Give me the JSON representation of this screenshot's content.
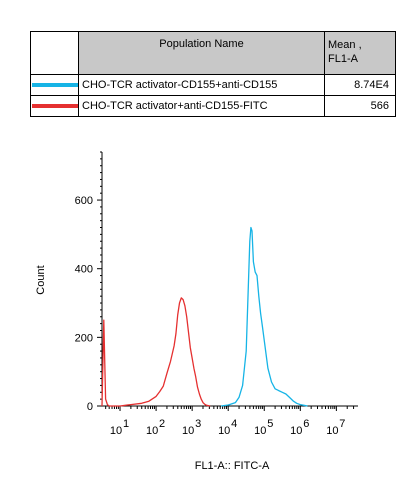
{
  "table": {
    "header_population": "Population Name",
    "header_mean_line1": "Mean ,",
    "header_mean_line2": "FL1-A",
    "rows": [
      {
        "name": "CHO-TCR activator-CD155+anti-CD155",
        "mean": "8.74E4",
        "color": "#16b4e6"
      },
      {
        "name": "CHO-TCR activator+anti-CD155-FITC",
        "mean": "566",
        "color": "#e53030"
      }
    ]
  },
  "chart_data": {
    "type": "line",
    "xlabel": "FL1-A:: FITC-A",
    "ylabel": "Count",
    "xscale": "log",
    "xlim": [
      0.5,
      7.6
    ],
    "ylim": [
      0,
      740
    ],
    "y_ticks": [
      0,
      200,
      400,
      600
    ],
    "x_ticks": [
      1,
      2,
      3,
      4,
      5,
      6,
      7
    ],
    "x_tick_labels": [
      "10",
      "10",
      "10",
      "10",
      "10",
      "10",
      "10"
    ],
    "x_tick_exponents": [
      "1",
      "2",
      "3",
      "4",
      "5",
      "6",
      "7"
    ],
    "series": [
      {
        "name": "CHO-TCR activator+anti-CD155-FITC",
        "color": "#e53030",
        "x": [
          0.5,
          0.55,
          0.6,
          0.65,
          0.7,
          1.0,
          1.3,
          1.6,
          1.8,
          2.0,
          2.1,
          2.2,
          2.3,
          2.4,
          2.5,
          2.55,
          2.6,
          2.65,
          2.7,
          2.75,
          2.8,
          2.85,
          2.9,
          2.95,
          3.0,
          3.05,
          3.1,
          3.15,
          3.2,
          3.25,
          3.3,
          3.35,
          3.4,
          3.5
        ],
        "y": [
          0,
          250,
          20,
          4,
          0,
          0,
          4,
          8,
          14,
          28,
          42,
          58,
          95,
          130,
          175,
          210,
          265,
          300,
          315,
          310,
          292,
          260,
          215,
          170,
          140,
          110,
          85,
          55,
          35,
          20,
          10,
          5,
          2,
          0
        ]
      },
      {
        "name": "CHO-TCR activator-CD155+anti-CD155",
        "color": "#16b4e6",
        "x": [
          3.8,
          4.0,
          4.2,
          4.3,
          4.4,
          4.5,
          4.55,
          4.6,
          4.63,
          4.66,
          4.7,
          4.75,
          4.8,
          4.85,
          4.9,
          4.95,
          5.0,
          5.05,
          5.1,
          5.2,
          5.3,
          5.4,
          5.5,
          5.6,
          5.7,
          5.8,
          5.9,
          6.0,
          6.1,
          6.2
        ],
        "y": [
          0,
          3,
          10,
          25,
          60,
          160,
          320,
          480,
          520,
          510,
          420,
          390,
          380,
          320,
          270,
          230,
          190,
          150,
          110,
          70,
          50,
          45,
          40,
          35,
          25,
          15,
          8,
          4,
          2,
          0
        ]
      }
    ]
  }
}
